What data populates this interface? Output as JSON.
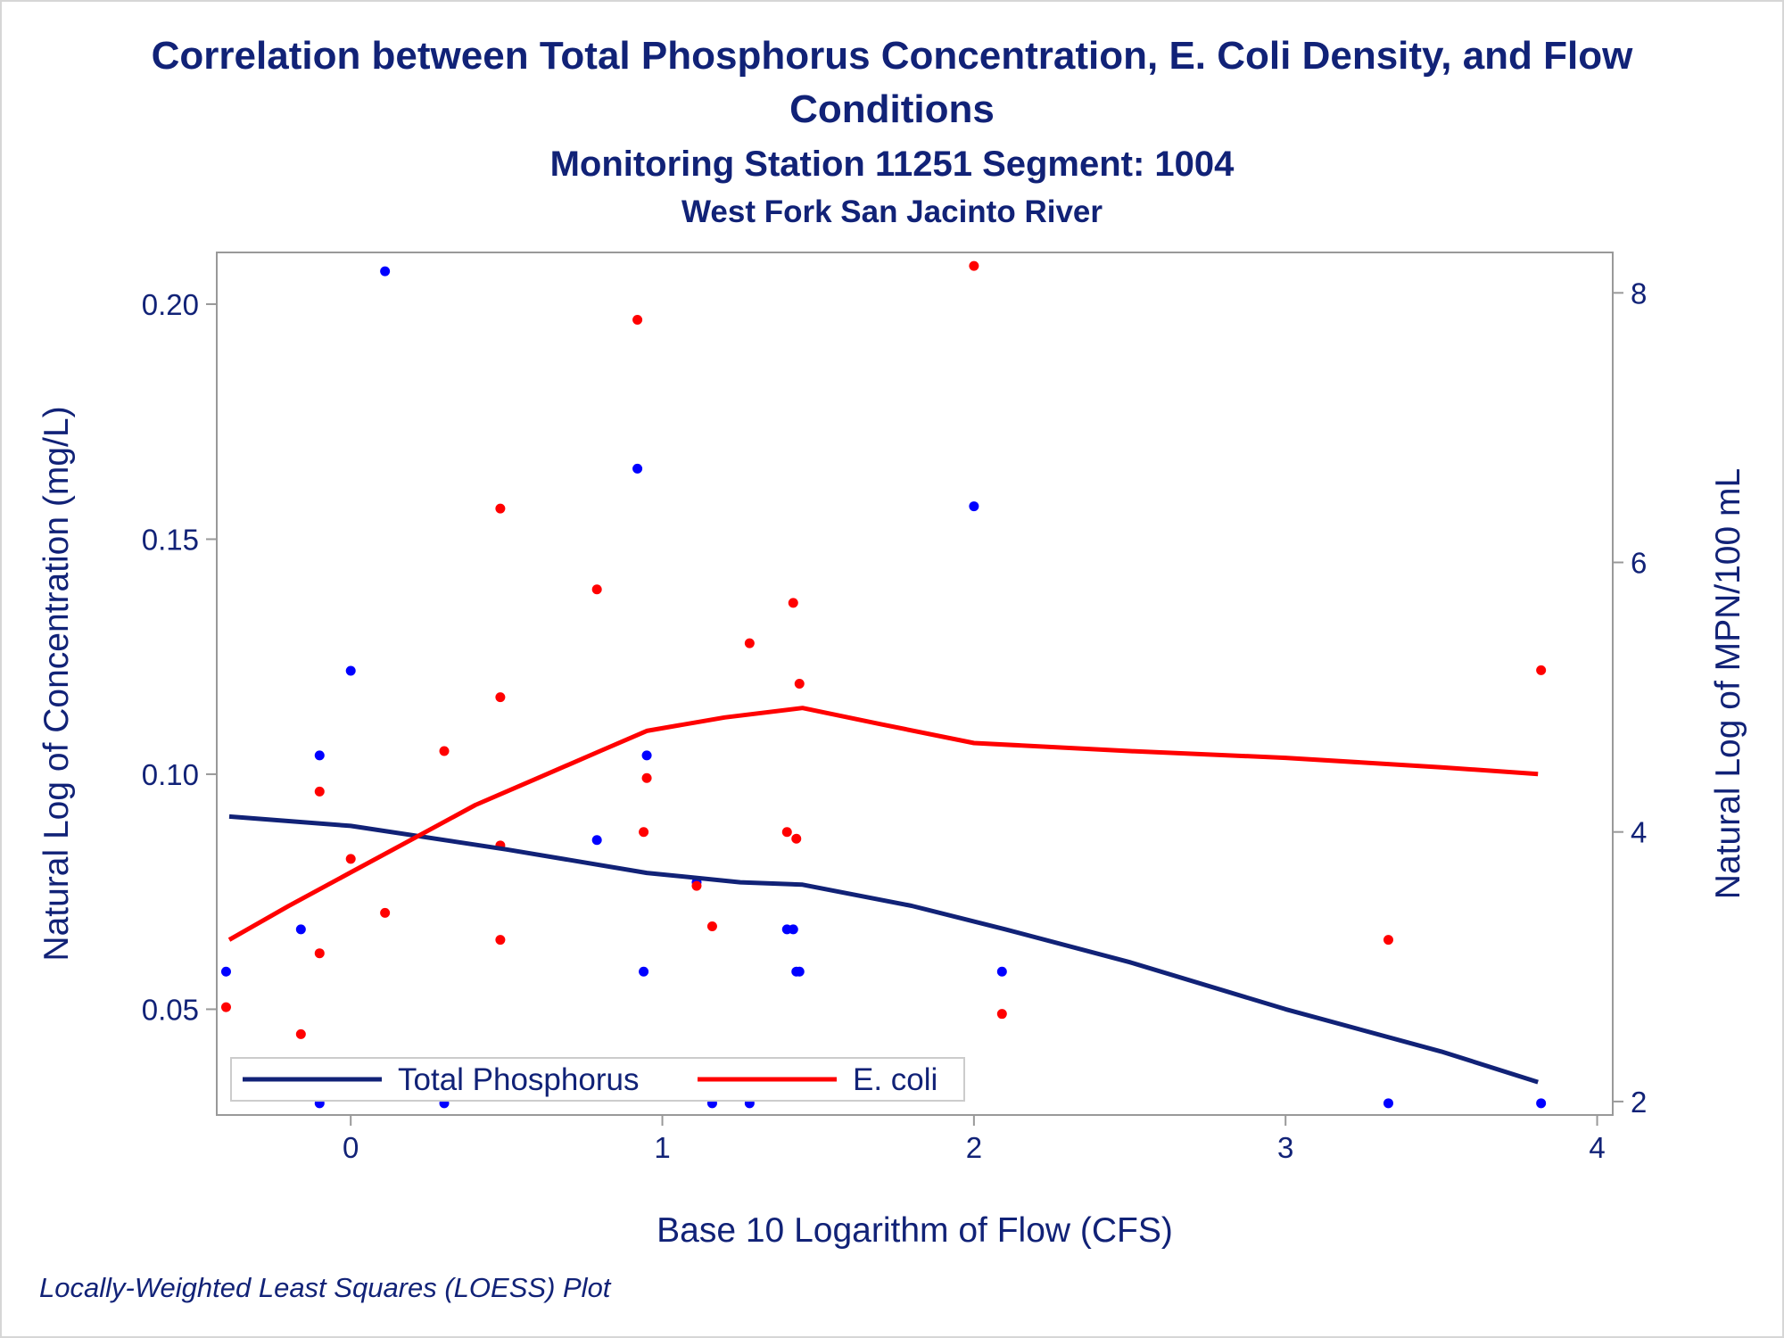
{
  "titles": {
    "title_line1": "Correlation between Total Phosphorus Concentration, E. Coli Density, and Flow",
    "title_line2": "Conditions",
    "subtitle1": "Monitoring Station 11251 Segment: 1004",
    "subtitle2": "West Fork San Jacinto River"
  },
  "footnote": "Locally-Weighted Least Squares (LOESS) Plot",
  "colors": {
    "axis_text": "#112277",
    "phosphorus": "#0000ff",
    "phosphorus_line": "#112277",
    "ecoli": "#ff0000",
    "frame": "#999999"
  },
  "chart_data": {
    "type": "scatter",
    "xlabel": "Base 10 Logarithm of Flow (CFS)",
    "ylabel_left": "Natural Log of Concentration (mg/L)",
    "ylabel_right": "Natural Log of MPN/100 mL",
    "xlim": [
      -0.43,
      4.05
    ],
    "ylim_left": [
      0.0275,
      0.211
    ],
    "ylim_right": [
      1.9,
      8.3
    ],
    "x_ticks": [
      "0",
      "1",
      "2",
      "3",
      "4"
    ],
    "x_tick_values": [
      0,
      1,
      2,
      3,
      4
    ],
    "y_left_ticks": [
      "0.05",
      "0.10",
      "0.15",
      "0.20"
    ],
    "y_left_tick_values": [
      0.05,
      0.1,
      0.15,
      0.2
    ],
    "y_right_ticks": [
      "2",
      "4",
      "6",
      "8"
    ],
    "y_right_tick_values": [
      2,
      4,
      6,
      8
    ],
    "grid": false,
    "legend_position": "bottom-left inside",
    "legend": [
      "Total Phosphorus",
      "E. coli"
    ],
    "series": [
      {
        "name": "Total Phosphorus",
        "axis": "left",
        "points": [
          [
            -0.4,
            0.058
          ],
          [
            -0.16,
            0.067
          ],
          [
            -0.1,
            0.104
          ],
          [
            -0.1,
            0.03
          ],
          [
            0.0,
            0.122
          ],
          [
            0.11,
            0.207
          ],
          [
            0.3,
            0.03
          ],
          [
            0.79,
            0.086
          ],
          [
            0.92,
            0.165
          ],
          [
            0.94,
            0.058
          ],
          [
            0.95,
            0.104
          ],
          [
            1.11,
            0.077
          ],
          [
            1.16,
            0.03
          ],
          [
            1.28,
            0.03
          ],
          [
            1.4,
            0.067
          ],
          [
            1.42,
            0.067
          ],
          [
            1.43,
            0.058
          ],
          [
            1.44,
            0.058
          ],
          [
            2.0,
            0.157
          ],
          [
            2.09,
            0.058
          ],
          [
            3.33,
            0.03
          ],
          [
            3.82,
            0.03
          ]
        ],
        "loess": [
          [
            -0.39,
            0.091
          ],
          [
            0.0,
            0.089
          ],
          [
            0.5,
            0.084
          ],
          [
            0.95,
            0.079
          ],
          [
            1.25,
            0.077
          ],
          [
            1.45,
            0.0765
          ],
          [
            1.8,
            0.072
          ],
          [
            2.1,
            0.067
          ],
          [
            2.5,
            0.06
          ],
          [
            3.0,
            0.05
          ],
          [
            3.5,
            0.041
          ],
          [
            3.81,
            0.0345
          ]
        ]
      },
      {
        "name": "E. coli",
        "axis": "right",
        "points": [
          [
            -0.4,
            2.7
          ],
          [
            -0.16,
            2.5
          ],
          [
            -0.1,
            4.3
          ],
          [
            -0.1,
            3.1
          ],
          [
            0.0,
            3.8
          ],
          [
            0.11,
            3.4
          ],
          [
            0.3,
            4.6
          ],
          [
            0.48,
            6.4
          ],
          [
            0.48,
            5.0
          ],
          [
            0.48,
            3.9
          ],
          [
            0.48,
            3.2
          ],
          [
            0.79,
            5.8
          ],
          [
            0.92,
            7.8
          ],
          [
            0.94,
            4.0
          ],
          [
            0.95,
            4.4
          ],
          [
            1.11,
            3.6
          ],
          [
            1.16,
            3.3
          ],
          [
            1.28,
            5.4
          ],
          [
            1.4,
            4.0
          ],
          [
            1.42,
            5.7
          ],
          [
            1.43,
            3.95
          ],
          [
            1.44,
            5.1
          ],
          [
            2.0,
            8.2
          ],
          [
            2.09,
            2.65
          ],
          [
            3.33,
            3.2
          ],
          [
            3.82,
            5.2
          ]
        ],
        "loess": [
          [
            -0.39,
            3.2
          ],
          [
            -0.2,
            3.45
          ],
          [
            0.0,
            3.7
          ],
          [
            0.2,
            3.95
          ],
          [
            0.4,
            4.2
          ],
          [
            0.6,
            4.4
          ],
          [
            0.8,
            4.6
          ],
          [
            0.95,
            4.75
          ],
          [
            1.2,
            4.85
          ],
          [
            1.45,
            4.92
          ],
          [
            1.7,
            4.8
          ],
          [
            2.0,
            4.66
          ],
          [
            2.5,
            4.6
          ],
          [
            3.0,
            4.55
          ],
          [
            3.5,
            4.48
          ],
          [
            3.81,
            4.43
          ]
        ]
      }
    ]
  }
}
